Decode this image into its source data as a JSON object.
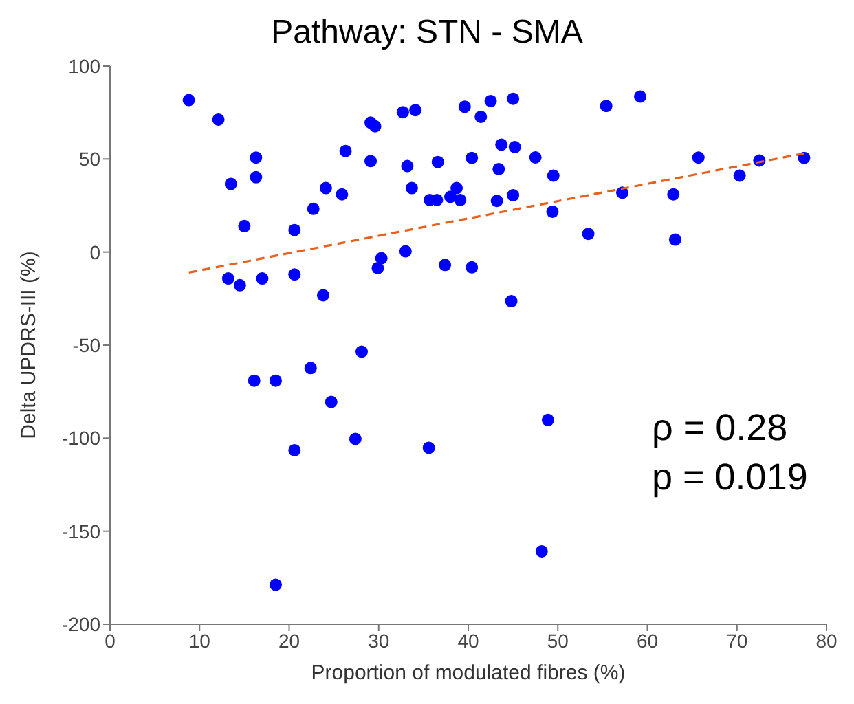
{
  "chart_data": {
    "type": "scatter",
    "title": "Pathway: STN - SMA",
    "xlabel": "Proportion of modulated fibres (%)",
    "ylabel": "Delta UPDRS-III (%)",
    "annotations": [
      "ρ = 0.28",
      "p = 0.019"
    ],
    "xlim": [
      0,
      80
    ],
    "xticks": [
      0,
      10,
      20,
      30,
      40,
      50,
      60,
      70,
      80
    ],
    "ylim": [
      -200,
      100
    ],
    "yticks": [
      -200,
      -150,
      -100,
      -50,
      0,
      50,
      100
    ],
    "marker": "circle",
    "series": [
      {
        "color": "#0000ff",
        "x": [
          8.8,
          12.1,
          16.3,
          13.5,
          16.3,
          15.0,
          20.6,
          13.2,
          14.5,
          17.0,
          20.6,
          23.8,
          22.7,
          24.1,
          25.9,
          26.3,
          29.1,
          29.6,
          29.1,
          29.9,
          30.3,
          32.7,
          34.1,
          33.2,
          33.7,
          33.0,
          36.6,
          35.7,
          36.5,
          37.4,
          38.0,
          38.7,
          39.1,
          39.6,
          40.4,
          40.4,
          42.5,
          41.4,
          45.0,
          55.4,
          59.2,
          43.7,
          45.2,
          43.4,
          47.5,
          49.5,
          43.2,
          45.0,
          49.4,
          53.4,
          57.2,
          62.9,
          63.1,
          65.7,
          70.3,
          72.5,
          77.5,
          44.8,
          16.1,
          18.5,
          22.4,
          28.1,
          24.7,
          20.6,
          27.4,
          35.6,
          48.9,
          48.2,
          18.5
        ],
        "values": [
          81.7,
          71.2,
          50.8,
          36.6,
          40.2,
          14.0,
          11.8,
          -14.2,
          -17.8,
          -14.2,
          -12.0,
          -23.2,
          23.2,
          34.4,
          31.0,
          54.3,
          69.6,
          67.6,
          48.9,
          -8.6,
          -3.3,
          75.2,
          76.3,
          46.2,
          34.4,
          0.4,
          48.4,
          28.0,
          28.0,
          -6.9,
          29.7,
          34.4,
          28.0,
          78.1,
          50.6,
          -8.2,
          81.2,
          72.7,
          82.4,
          78.5,
          83.6,
          57.7,
          56.4,
          44.6,
          50.9,
          41.1,
          27.5,
          30.5,
          21.7,
          9.8,
          31.9,
          31.0,
          6.7,
          50.8,
          41.1,
          49.2,
          50.6,
          -26.4,
          -69.1,
          -69.1,
          -62.3,
          -53.5,
          -80.5,
          -106.5,
          -100.4,
          -105.2,
          -90.2,
          -160.8,
          -178.8
        ]
      },
      {
        "type": "line",
        "color": "#e8601c",
        "line_style": "dashed",
        "marker": "none",
        "x": [
          8.8,
          77.5
        ],
        "values": [
          -11,
          53
        ]
      }
    ]
  }
}
